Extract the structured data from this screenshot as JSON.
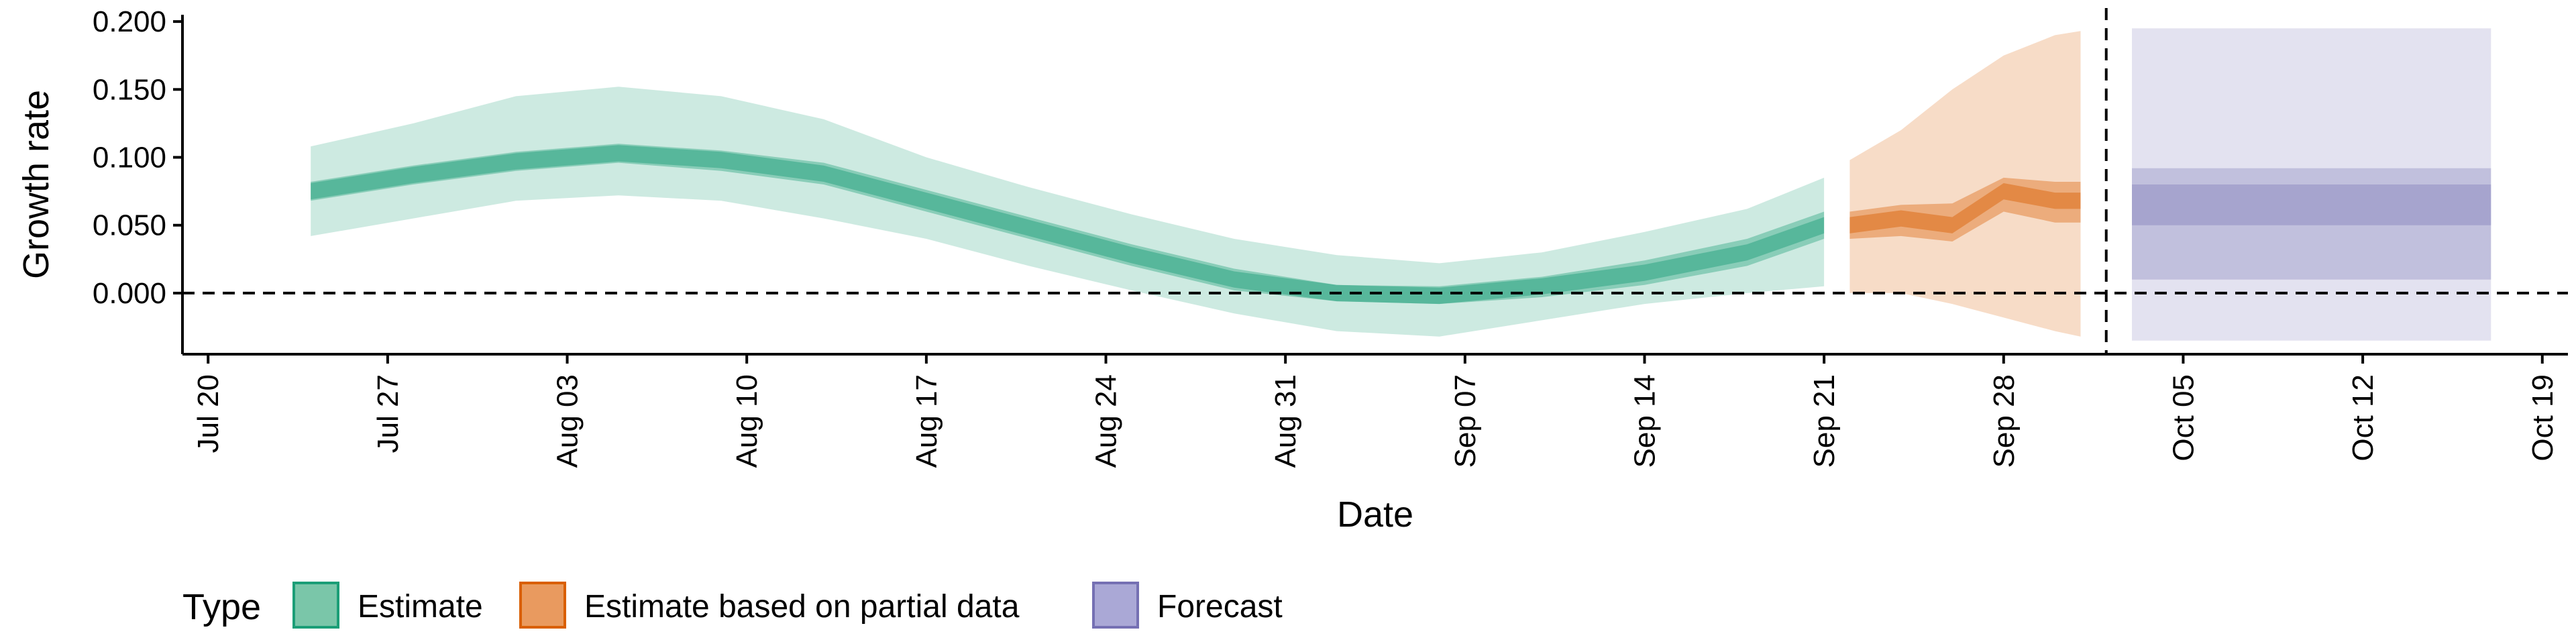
{
  "chart_data": {
    "type": "area",
    "xlabel": "Date",
    "ylabel": "Growth rate",
    "x_range": [
      "2020-07-19",
      "2020-10-20"
    ],
    "ylim": [
      -0.045,
      0.205
    ],
    "y_ticks": [
      0.0,
      0.05,
      0.1,
      0.15,
      0.2
    ],
    "y_tick_labels": [
      "0.000",
      "0.050",
      "0.100",
      "0.150",
      "0.200"
    ],
    "x_ticks": [
      "2020-07-20",
      "2020-07-27",
      "2020-08-03",
      "2020-08-10",
      "2020-08-17",
      "2020-08-24",
      "2020-08-31",
      "2020-09-07",
      "2020-09-14",
      "2020-09-21",
      "2020-09-28",
      "2020-10-05",
      "2020-10-12",
      "2020-10-19"
    ],
    "x_tick_labels": [
      "Jul 20",
      "Jul 27",
      "Aug 03",
      "Aug 10",
      "Aug 17",
      "Aug 24",
      "Aug 31",
      "Sep 07",
      "Sep 14",
      "Sep 21",
      "Sep 28",
      "Oct 05",
      "Oct 12",
      "Oct 19"
    ],
    "reference_lines": {
      "horizontal_y": 0.0,
      "vertical_x": "2020-10-02"
    },
    "grid": false,
    "legend": {
      "title": "Type",
      "position": "bottom-left",
      "entries": [
        {
          "label": "Estimate",
          "color": "#7ac6a9",
          "border": "#1b9e77"
        },
        {
          "label": "Estimate based on partial data",
          "color": "#e99a5f",
          "border": "#d95f02"
        },
        {
          "label": "Forecast",
          "color": "#aaa8d6",
          "border": "#7570b3"
        }
      ]
    },
    "series": [
      {
        "name": "Estimate",
        "color": "#1b9e77",
        "x": [
          "2020-07-24",
          "2020-07-28",
          "2020-08-01",
          "2020-08-05",
          "2020-08-09",
          "2020-08-13",
          "2020-08-17",
          "2020-08-21",
          "2020-08-25",
          "2020-08-29",
          "2020-09-02",
          "2020-09-06",
          "2020-09-10",
          "2020-09-14",
          "2020-09-18",
          "2020-09-21"
        ],
        "median": [
          0.075,
          0.087,
          0.097,
          0.103,
          0.098,
          0.088,
          0.068,
          0.048,
          0.028,
          0.01,
          0.0,
          -0.002,
          0.005,
          0.015,
          0.03,
          0.05
        ],
        "lower_50": [
          0.068,
          0.08,
          0.09,
          0.096,
          0.09,
          0.08,
          0.06,
          0.04,
          0.02,
          0.002,
          -0.006,
          -0.008,
          -0.003,
          0.006,
          0.02,
          0.04
        ],
        "upper_50": [
          0.082,
          0.094,
          0.104,
          0.11,
          0.105,
          0.096,
          0.076,
          0.056,
          0.036,
          0.018,
          0.006,
          0.005,
          0.012,
          0.024,
          0.04,
          0.06
        ],
        "lower_90": [
          0.042,
          0.055,
          0.068,
          0.072,
          0.068,
          0.055,
          0.04,
          0.02,
          0.002,
          -0.015,
          -0.028,
          -0.032,
          -0.02,
          -0.008,
          0.0,
          0.005
        ],
        "upper_90": [
          0.108,
          0.125,
          0.145,
          0.152,
          0.145,
          0.128,
          0.1,
          0.078,
          0.058,
          0.04,
          0.028,
          0.022,
          0.03,
          0.045,
          0.062,
          0.085
        ]
      },
      {
        "name": "Estimate based on partial data",
        "color": "#d95f02",
        "x": [
          "2020-09-22",
          "2020-09-24",
          "2020-09-26",
          "2020-09-28",
          "2020-09-30",
          "2020-10-01"
        ],
        "median": [
          0.05,
          0.055,
          0.05,
          0.075,
          0.068,
          0.068
        ],
        "lower_50": [
          0.04,
          0.042,
          0.038,
          0.06,
          0.052,
          0.052
        ],
        "upper_50": [
          0.06,
          0.065,
          0.066,
          0.085,
          0.082,
          0.082
        ],
        "lower_90": [
          0.0,
          0.0,
          -0.008,
          -0.018,
          -0.028,
          -0.032
        ],
        "upper_90": [
          0.098,
          0.12,
          0.15,
          0.175,
          0.19,
          0.193
        ]
      },
      {
        "name": "Forecast",
        "color": "#7570b3",
        "x": [
          "2020-10-03",
          "2020-10-17"
        ],
        "median": [
          0.065,
          0.065
        ],
        "lower_30": [
          0.05,
          0.05
        ],
        "upper_30": [
          0.08,
          0.08
        ],
        "lower_50": [
          0.01,
          0.01
        ],
        "upper_50": [
          0.092,
          0.092
        ],
        "lower_90": [
          -0.035,
          -0.035
        ],
        "upper_90": [
          0.195,
          0.195
        ]
      }
    ]
  }
}
